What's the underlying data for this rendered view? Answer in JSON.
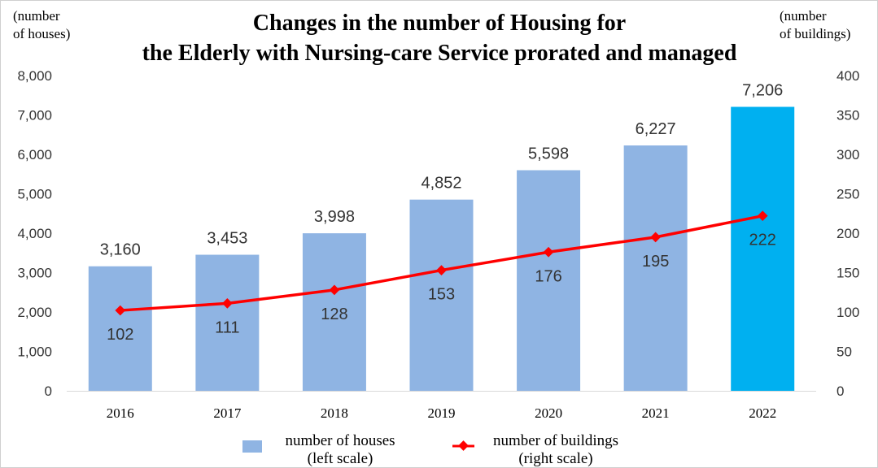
{
  "chart_data": {
    "type": "bar",
    "title_line1": "Changes in the number of Housing for",
    "title_line2": "the Elderly with Nursing-care Service prorated and managed",
    "left_unit_line1": "(number",
    "left_unit_line2": "of houses)",
    "right_unit_line1": "(number",
    "right_unit_line2": "of buildings)",
    "categories": [
      "2016",
      "2017",
      "2018",
      "2019",
      "2020",
      "2021",
      "2022"
    ],
    "bar_series": {
      "legend_line1": "number of houses",
      "legend_line2": "(left scale)",
      "values": [
        3160,
        3453,
        3998,
        4852,
        5598,
        6227,
        7206
      ],
      "labels": [
        "3,160",
        "3,453",
        "3,998",
        "4,852",
        "5,598",
        "6,227",
        "7,206"
      ],
      "color": "#8fb4e3",
      "highlight_color": "#00b0f0",
      "highlight_index": 6
    },
    "line_series": {
      "legend_line1": "number of buildings",
      "legend_line2": "(right scale)",
      "values": [
        102,
        111,
        128,
        153,
        176,
        195,
        222
      ],
      "color": "#ff0000"
    },
    "left_axis": {
      "ylim": [
        0,
        8000
      ],
      "ticks": [
        0,
        1000,
        2000,
        3000,
        4000,
        5000,
        6000,
        7000,
        8000
      ],
      "tick_labels": [
        "0",
        "1,000",
        "2,000",
        "3,000",
        "4,000",
        "5,000",
        "6,000",
        "7,000",
        "8,000"
      ]
    },
    "right_axis": {
      "ylim": [
        0,
        400
      ],
      "ticks": [
        0,
        50,
        100,
        150,
        200,
        250,
        300,
        350,
        400
      ],
      "tick_labels": [
        "0",
        "50",
        "100",
        "150",
        "200",
        "250",
        "300",
        "350",
        "400"
      ]
    },
    "grid": false,
    "legend_position": "bottom"
  }
}
